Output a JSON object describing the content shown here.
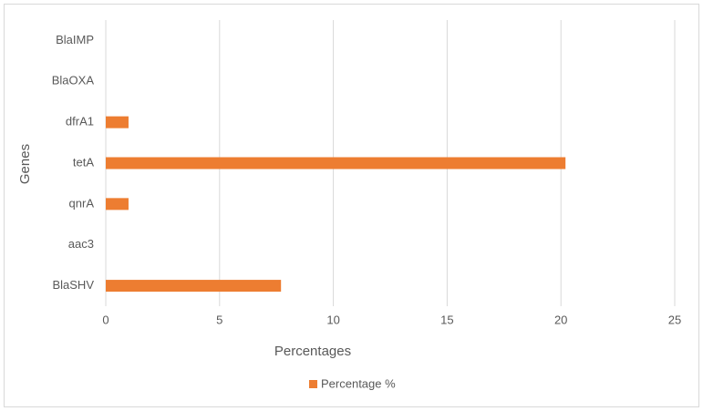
{
  "chart_data": {
    "type": "bar",
    "orientation": "horizontal",
    "x_label": "Percentages",
    "y_label": "Genes",
    "categories": [
      "BlaIMP",
      "BlaOXA",
      "dfrA1",
      "tetA",
      "qnrA",
      "aac3",
      "BlaSHV"
    ],
    "series": [
      {
        "name": "Percentage %",
        "color": "#ed7d31",
        "values": [
          0,
          0,
          1,
          20.2,
          1,
          0,
          7.7
        ]
      }
    ],
    "xlim": [
      0,
      25
    ],
    "xticks": [
      0,
      5,
      10,
      15,
      20,
      25
    ],
    "grid": true,
    "legend": "bottom"
  }
}
